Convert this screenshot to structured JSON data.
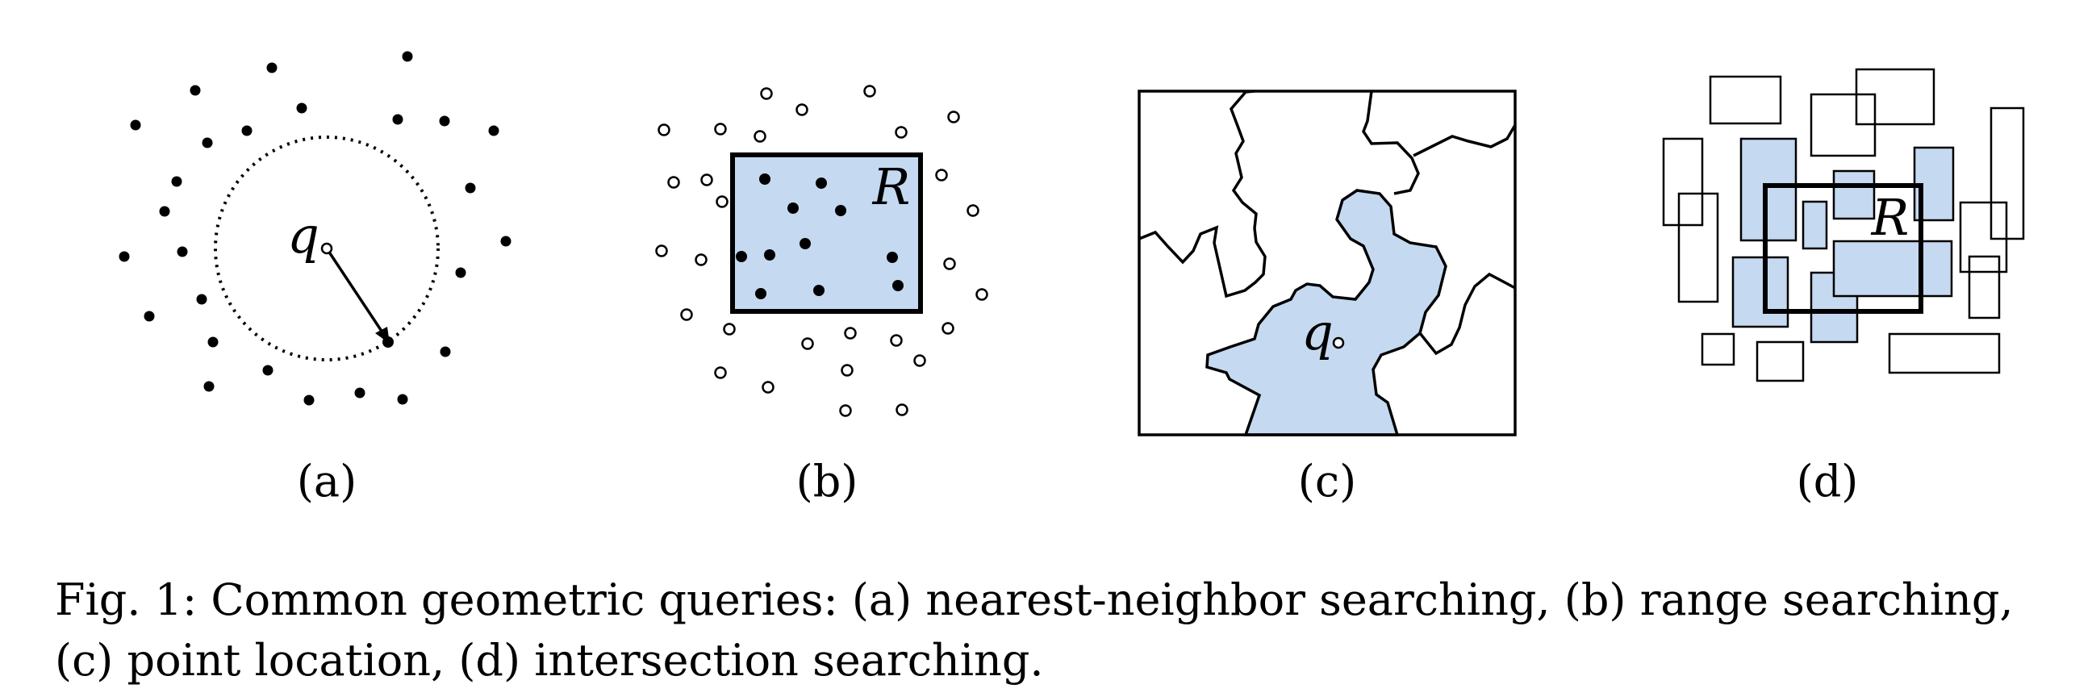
{
  "figure": {
    "colors": {
      "ink": "#000000",
      "fill": "#c5d9f1"
    },
    "panels": [
      {
        "label": "(a)",
        "query_label": "q"
      },
      {
        "label": "(b)",
        "range_label": "R"
      },
      {
        "label": "(c)",
        "query_label": "q"
      },
      {
        "label": "(d)",
        "range_label": "R"
      }
    ],
    "caption": "Fig. 1: Common geometric queries: (a) nearest-neighbor searching, (b) range searching, (c) point location, (d) intersection searching."
  }
}
